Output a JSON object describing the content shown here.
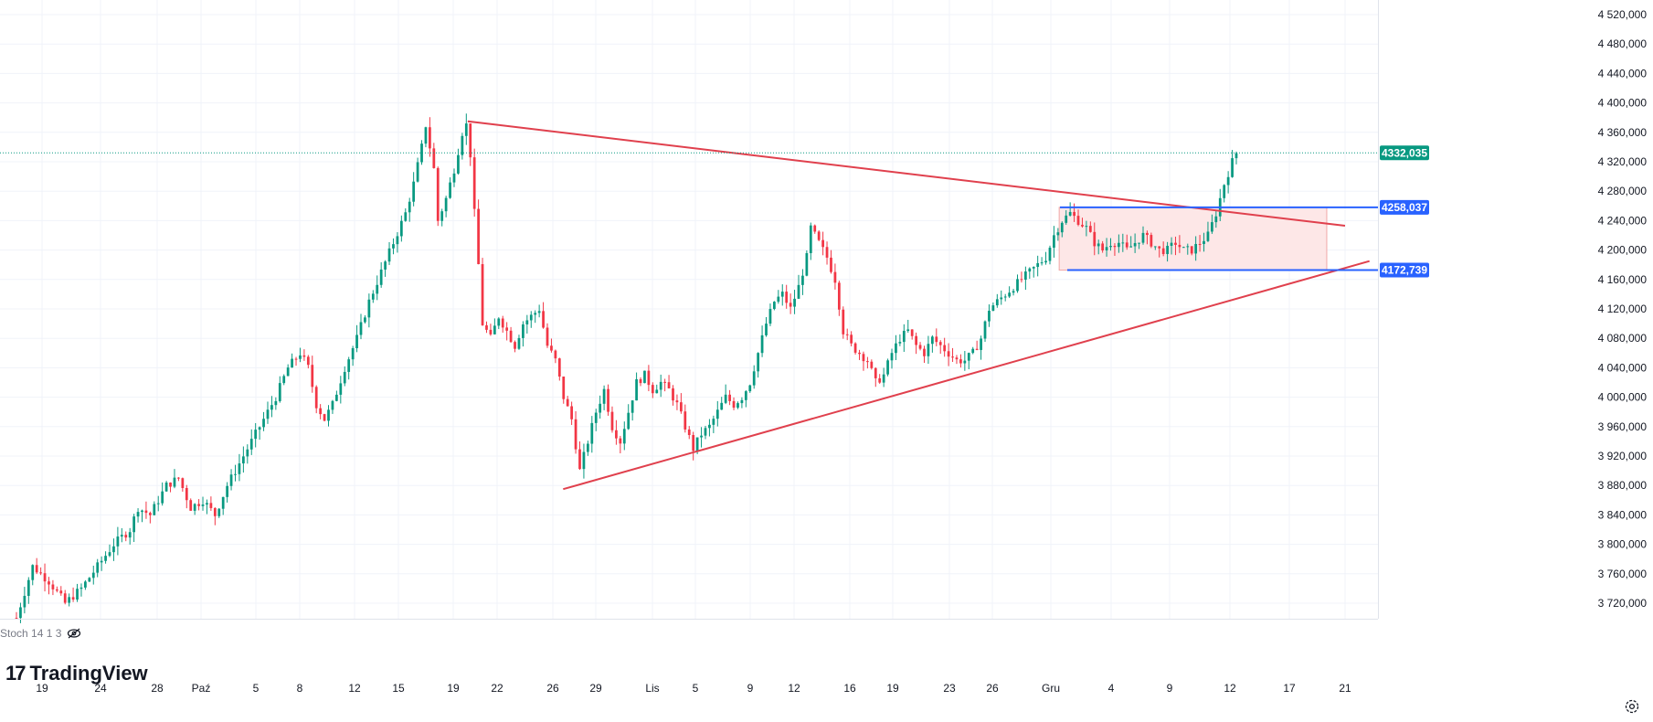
{
  "chart_data": {
    "type": "candlestick",
    "title": "",
    "ylim": [
      3700000,
      4530000
    ],
    "y_ticks": [
      3720000,
      3760000,
      3800000,
      3840000,
      3880000,
      3920000,
      3960000,
      4000000,
      4040000,
      4080000,
      4120000,
      4160000,
      4200000,
      4240000,
      4280000,
      4320000,
      4360000,
      4400000,
      4440000,
      4480000,
      4520000
    ],
    "y_tick_labels": [
      "3 720,000",
      "3 760,000",
      "3 800,000",
      "3 840,000",
      "3 880,000",
      "3 920,000",
      "3 960,000",
      "4 000,000",
      "4 040,000",
      "4 080,000",
      "4 120,000",
      "4 160,000",
      "4 200,000",
      "4 240,000",
      "4 280,000",
      "4 320,000",
      "4 360,000",
      "4 400,000",
      "4 440,000",
      "4 480,000",
      "4 520,000"
    ],
    "x_tick_labels": [
      "19",
      "24",
      "28",
      "Paź",
      "5",
      "8",
      "12",
      "15",
      "19",
      "22",
      "26",
      "29",
      "Lis",
      "5",
      "9",
      "12",
      "16",
      "19",
      "23",
      "26",
      "Gru",
      "4",
      "9",
      "12",
      "17",
      "21"
    ],
    "series_path": [
      [
        0,
        3700000
      ],
      [
        4,
        3770000
      ],
      [
        8,
        3750000
      ],
      [
        12,
        3720000
      ],
      [
        16,
        3740000
      ],
      [
        20,
        3770000
      ],
      [
        24,
        3800000
      ],
      [
        28,
        3820000
      ],
      [
        30,
        3850000
      ],
      [
        33,
        3840000
      ],
      [
        37,
        3880000
      ],
      [
        40,
        3890000
      ],
      [
        43,
        3850000
      ],
      [
        46,
        3860000
      ],
      [
        49,
        3840000
      ],
      [
        52,
        3880000
      ],
      [
        55,
        3910000
      ],
      [
        58,
        3940000
      ],
      [
        61,
        3970000
      ],
      [
        64,
        4000000
      ],
      [
        67,
        4040000
      ],
      [
        70,
        4060000
      ],
      [
        72,
        4040000
      ],
      [
        74,
        3990000
      ],
      [
        76,
        3970000
      ],
      [
        78,
        3990000
      ],
      [
        81,
        4040000
      ],
      [
        84,
        4080000
      ],
      [
        87,
        4130000
      ],
      [
        90,
        4170000
      ],
      [
        93,
        4210000
      ],
      [
        96,
        4250000
      ],
      [
        98,
        4290000
      ],
      [
        100,
        4340000
      ],
      [
        101,
        4370000
      ],
      [
        103,
        4310000
      ],
      [
        104,
        4240000
      ],
      [
        106,
        4270000
      ],
      [
        108,
        4310000
      ],
      [
        110,
        4360000
      ],
      [
        111,
        4370000
      ],
      [
        112,
        4330000
      ],
      [
        113,
        4250000
      ],
      [
        114,
        4180000
      ],
      [
        115,
        4100000
      ],
      [
        117,
        4080000
      ],
      [
        119,
        4110000
      ],
      [
        121,
        4090000
      ],
      [
        123,
        4070000
      ],
      [
        125,
        4100000
      ],
      [
        127,
        4110000
      ],
      [
        129,
        4120000
      ],
      [
        131,
        4070000
      ],
      [
        133,
        4050000
      ],
      [
        135,
        4000000
      ],
      [
        137,
        3970000
      ],
      [
        139,
        3900000
      ],
      [
        141,
        3940000
      ],
      [
        143,
        3980000
      ],
      [
        145,
        4010000
      ],
      [
        147,
        3960000
      ],
      [
        149,
        3940000
      ],
      [
        151,
        3980000
      ],
      [
        153,
        4020000
      ],
      [
        155,
        4030000
      ],
      [
        157,
        4010000
      ],
      [
        159,
        4020000
      ],
      [
        161,
        4010000
      ],
      [
        163,
        3990000
      ],
      [
        165,
        3960000
      ],
      [
        167,
        3930000
      ],
      [
        169,
        3950000
      ],
      [
        171,
        3960000
      ],
      [
        173,
        3980000
      ],
      [
        175,
        4000000
      ],
      [
        177,
        3990000
      ],
      [
        179,
        4000000
      ],
      [
        181,
        4020000
      ],
      [
        183,
        4060000
      ],
      [
        185,
        4100000
      ],
      [
        187,
        4130000
      ],
      [
        189,
        4140000
      ],
      [
        191,
        4120000
      ],
      [
        193,
        4150000
      ],
      [
        195,
        4190000
      ],
      [
        196,
        4230000
      ],
      [
        198,
        4210000
      ],
      [
        200,
        4190000
      ],
      [
        202,
        4160000
      ],
      [
        204,
        4090000
      ],
      [
        206,
        4070000
      ],
      [
        208,
        4060000
      ],
      [
        210,
        4050000
      ],
      [
        212,
        4020000
      ],
      [
        214,
        4030000
      ],
      [
        216,
        4060000
      ],
      [
        218,
        4080000
      ],
      [
        220,
        4090000
      ],
      [
        222,
        4070000
      ],
      [
        224,
        4060000
      ],
      [
        226,
        4080000
      ],
      [
        228,
        4070000
      ],
      [
        230,
        4060000
      ],
      [
        232,
        4050000
      ],
      [
        234,
        4050000
      ],
      [
        236,
        4060000
      ],
      [
        238,
        4080000
      ],
      [
        240,
        4120000
      ],
      [
        242,
        4130000
      ],
      [
        244,
        4140000
      ],
      [
        246,
        4150000
      ],
      [
        248,
        4160000
      ],
      [
        250,
        4170000
      ],
      [
        252,
        4180000
      ],
      [
        254,
        4190000
      ],
      [
        256,
        4220000
      ],
      [
        258,
        4240000
      ],
      [
        260,
        4250000
      ],
      [
        262,
        4240000
      ],
      [
        264,
        4230000
      ],
      [
        266,
        4210000
      ],
      [
        268,
        4200000
      ],
      [
        270,
        4210000
      ],
      [
        272,
        4210000
      ],
      [
        274,
        4200000
      ],
      [
        276,
        4210000
      ],
      [
        278,
        4220000
      ],
      [
        280,
        4210000
      ],
      [
        282,
        4200000
      ],
      [
        284,
        4200000
      ],
      [
        286,
        4210000
      ],
      [
        288,
        4200000
      ],
      [
        290,
        4200000
      ],
      [
        292,
        4210000
      ],
      [
        294,
        4220000
      ],
      [
        296,
        4250000
      ],
      [
        298,
        4290000
      ],
      [
        300,
        4320000
      ],
      [
        301,
        4332035
      ]
    ],
    "last_price": "4332,035",
    "annotations": {
      "resistance_level": "4258,037",
      "support_level": "4172,739",
      "consolidation_box": {
        "from_index": 260,
        "to_index": 317,
        "top": 4258037,
        "bottom": 4172739
      },
      "upper_trendline": {
        "from": [
          110,
          4375000
        ],
        "to": [
          317,
          4233000
        ]
      },
      "lower_trendline": {
        "from": [
          134,
          3875000
        ],
        "to": [
          321,
          4185000
        ]
      }
    },
    "colors": {
      "up": "#089981",
      "down": "#f23645",
      "trendline": "#e0404d",
      "level_line": "#2962ff",
      "box_fill": "#fde7e7",
      "box_stroke": "#f1a7a7",
      "last_price_bg": "#089981",
      "level_bg": "#2962ff",
      "grid": "#f0f3fa"
    }
  },
  "indicator": {
    "label": "Stoch 14 1 3"
  },
  "brand": {
    "mark": "17",
    "name": "TradingView"
  },
  "icons": {
    "hide": "eye-off-icon",
    "settings": "settings-icon"
  }
}
